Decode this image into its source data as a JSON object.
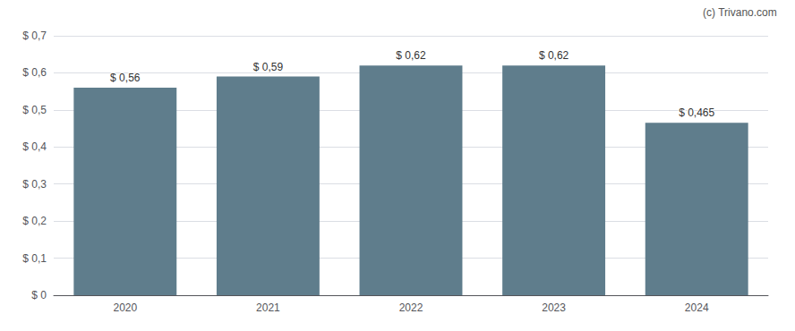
{
  "chart_data": {
    "type": "bar",
    "categories": [
      "2020",
      "2021",
      "2022",
      "2023",
      "2024"
    ],
    "values": [
      0.56,
      0.59,
      0.62,
      0.62,
      0.465
    ],
    "value_labels": [
      "$ 0,56",
      "$ 0,59",
      "$ 0,62",
      "$ 0,62",
      "$ 0,465"
    ],
    "data_labels": true,
    "color": "#5f7d8c",
    "ylim": [
      0,
      0.7
    ],
    "yticks": [
      {
        "value": 0,
        "label": "$ 0"
      },
      {
        "value": 0.1,
        "label": "$ 0,1"
      },
      {
        "value": 0.2,
        "label": "$ 0,2"
      },
      {
        "value": 0.3,
        "label": "$ 0,3"
      },
      {
        "value": 0.4,
        "label": "$ 0,4"
      },
      {
        "value": 0.5,
        "label": "$ 0,5"
      },
      {
        "value": 0.6,
        "label": "$ 0,6"
      },
      {
        "value": 0.7,
        "label": "$ 0,7"
      }
    ],
    "grid": true,
    "annotations": [
      "(c) Trivano.com"
    ]
  }
}
